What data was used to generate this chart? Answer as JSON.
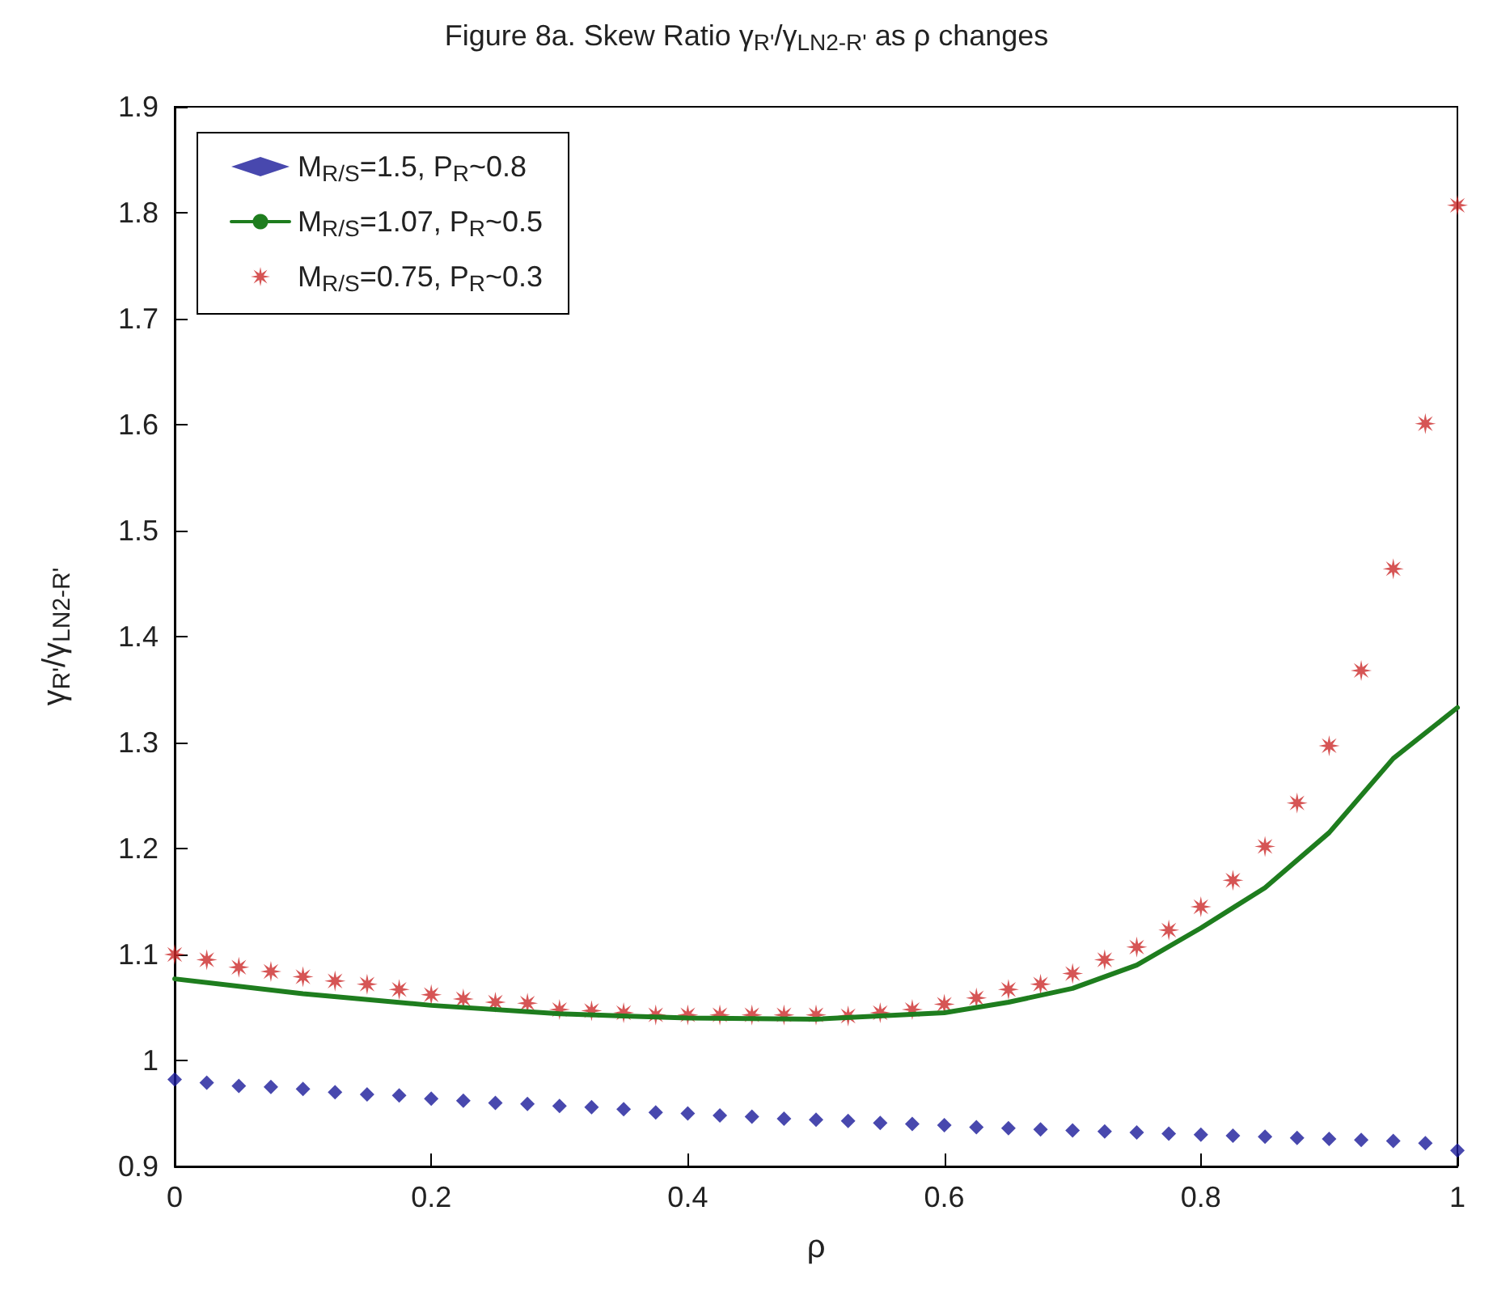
{
  "chart_data": {
    "type": "scatter",
    "title": "Figure 8a. Skew Ratio γ$_{R'}$/γ$_{LN2-R'}$ as ρ changes",
    "xlabel": "ρ",
    "ylabel": "γ$_{R'}$/γ$_{LN2-R'}$",
    "x": [
      0,
      0.025,
      0.05,
      0.075,
      0.1,
      0.125,
      0.15,
      0.175,
      0.2,
      0.225,
      0.25,
      0.275,
      0.3,
      0.325,
      0.35,
      0.375,
      0.4,
      0.425,
      0.45,
      0.475,
      0.5,
      0.525,
      0.55,
      0.575,
      0.6,
      0.625,
      0.65,
      0.675,
      0.7,
      0.725,
      0.75,
      0.775,
      0.8,
      0.825,
      0.85,
      0.875,
      0.9,
      0.925,
      0.95,
      0.975,
      1
    ],
    "series": [
      {
        "name": "M$_{R/S}$=1.5, P$_{R}$~0.8",
        "marker": "diamond",
        "color": "#1a1a9a",
        "values": [
          0.982,
          0.979,
          0.976,
          0.975,
          0.973,
          0.97,
          0.968,
          0.967,
          0.964,
          0.962,
          0.96,
          0.959,
          0.957,
          0.956,
          0.954,
          0.951,
          0.95,
          0.948,
          0.947,
          0.945,
          0.944,
          0.943,
          0.941,
          0.94,
          0.939,
          0.937,
          0.936,
          0.935,
          0.934,
          0.933,
          0.932,
          0.931,
          0.93,
          0.929,
          0.928,
          0.927,
          0.926,
          0.925,
          0.924,
          0.922,
          0.915
        ]
      },
      {
        "name": "M$_{R/S}$=1.07, P$_{R}$~0.5",
        "type": "line",
        "marker": "none",
        "line_style": "solid",
        "color": "#1e7d1e",
        "x": [
          0,
          0.1,
          0.2,
          0.3,
          0.4,
          0.5,
          0.6,
          0.65,
          0.7,
          0.75,
          0.8,
          0.85,
          0.9,
          0.95,
          1
        ],
        "values": [
          1.077,
          1.063,
          1.052,
          1.044,
          1.04,
          1.039,
          1.045,
          1.055,
          1.068,
          1.09,
          1.125,
          1.163,
          1.215,
          1.285,
          1.333
        ]
      },
      {
        "name": "M$_{R/S}$=0.75, P$_{R}$~0.3",
        "marker": "star",
        "color": "#cc2a2a",
        "values": [
          1.1,
          1.095,
          1.088,
          1.084,
          1.079,
          1.075,
          1.072,
          1.067,
          1.062,
          1.058,
          1.055,
          1.054,
          1.048,
          1.047,
          1.045,
          1.043,
          1.043,
          1.043,
          1.043,
          1.043,
          1.043,
          1.042,
          1.045,
          1.048,
          1.053,
          1.059,
          1.067,
          1.072,
          1.082,
          1.095,
          1.107,
          1.123,
          1.145,
          1.17,
          1.202,
          1.243,
          1.297,
          1.368,
          1.464,
          1.601,
          1.807
        ]
      }
    ],
    "xlim": [
      0,
      1
    ],
    "xticks": [
      0,
      0.2,
      0.4,
      0.6,
      0.8,
      1
    ],
    "ylim": [
      0.9,
      1.9
    ],
    "yticks": [
      0.9,
      1,
      1.1,
      1.2,
      1.3,
      1.4,
      1.5,
      1.6,
      1.7,
      1.8,
      1.9
    ],
    "grid": false,
    "legend": "top left"
  }
}
